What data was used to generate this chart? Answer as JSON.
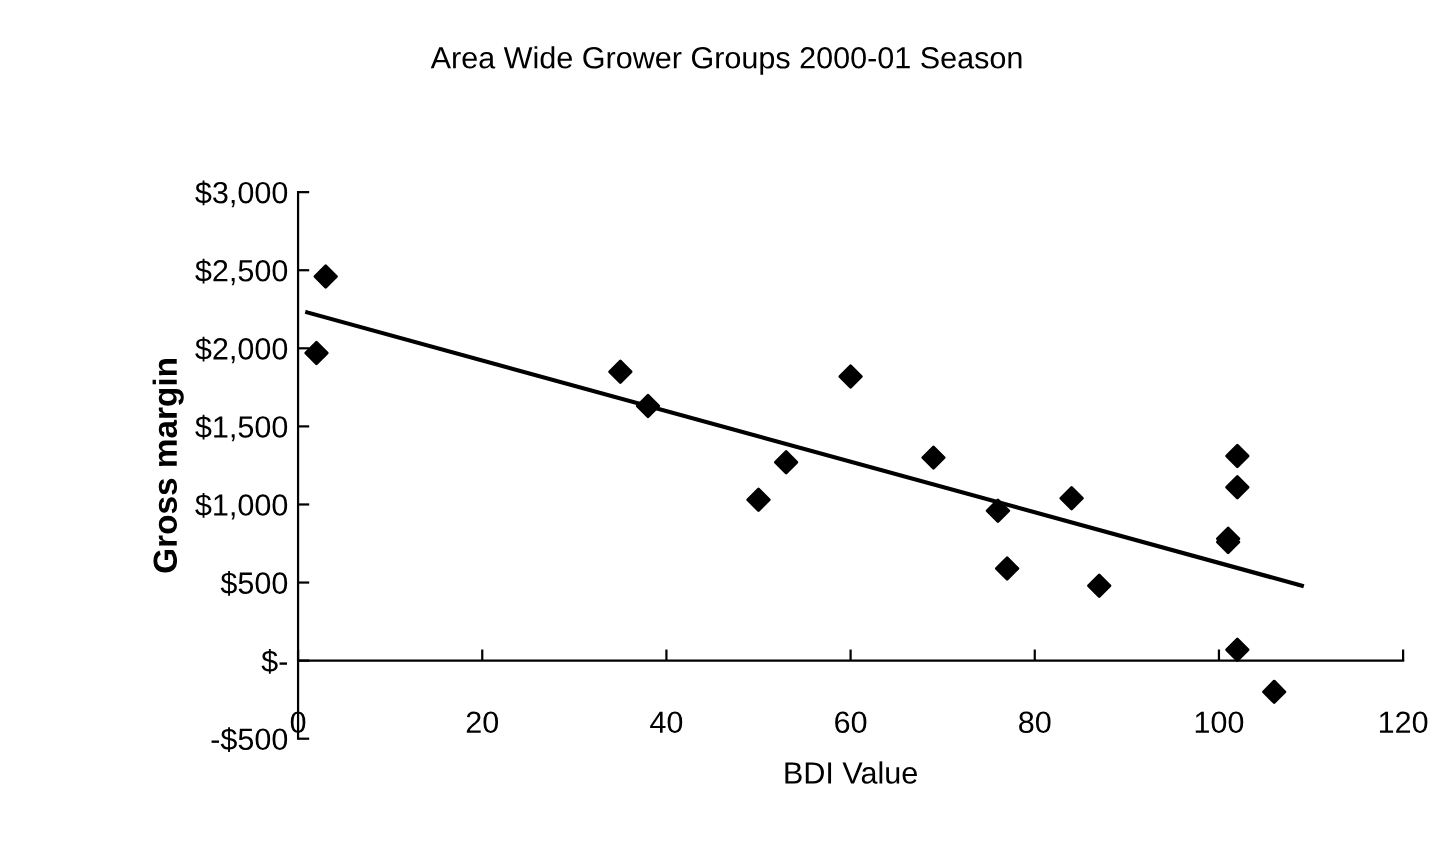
{
  "chart_data": {
    "type": "scatter",
    "title": "Area Wide Grower Groups 2000-01 Season",
    "xlabel": "BDI Value",
    "ylabel": "Gross margin",
    "series": [
      {
        "color": "#000000",
        "marker": "diamond",
        "x": [
          2,
          3,
          35,
          38,
          50,
          53,
          60,
          69,
          76,
          77,
          84,
          87,
          101,
          101,
          102,
          102,
          102,
          106
        ],
        "values": [
          1970,
          2460,
          1850,
          1630,
          1030,
          1270,
          1820,
          1300,
          960,
          590,
          1040,
          480,
          780,
          760,
          1310,
          1110,
          70,
          -200
        ]
      },
      {
        "type": "line",
        "color": "#000000",
        "marker": "none",
        "line_style": "solid",
        "x": [
          1,
          109
        ],
        "values": [
          2230,
          480
        ]
      }
    ],
    "xlim": [
      0,
      120
    ],
    "xticks": [
      0,
      20,
      40,
      60,
      80,
      100,
      120
    ],
    "ylim": [
      -500,
      3000
    ],
    "yticks": [
      {
        "value": -500,
        "label": "-$500"
      },
      {
        "value": 0,
        "label": "$-"
      },
      {
        "value": 500,
        "label": "$500"
      },
      {
        "value": 1000,
        "label": "$1,000"
      },
      {
        "value": 1500,
        "label": "$1,500"
      },
      {
        "value": 2000,
        "label": "$2,000"
      },
      {
        "value": 2500,
        "label": "$2,500"
      },
      {
        "value": 3000,
        "label": "$3,000"
      }
    ],
    "grid": false,
    "legend": false
  }
}
